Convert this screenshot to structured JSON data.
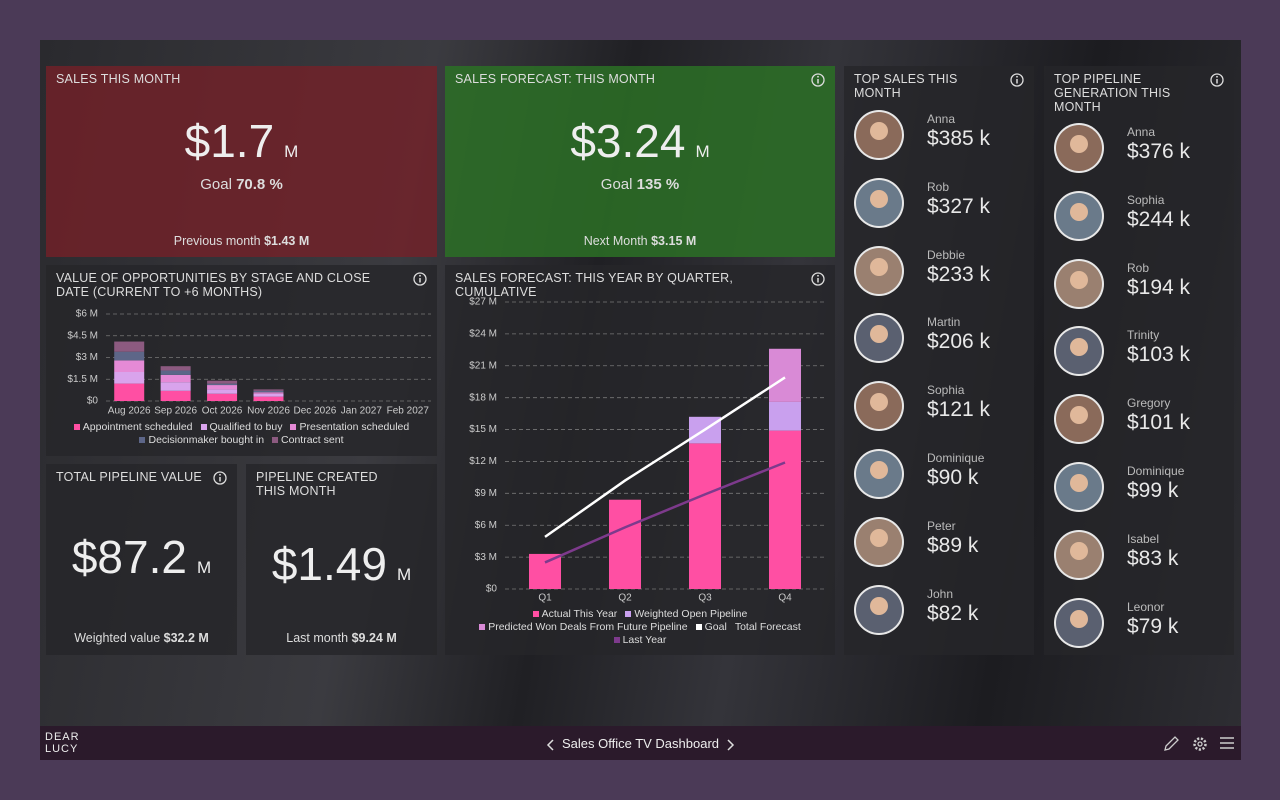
{
  "kpis": [
    {
      "title": "SALES THIS MONTH",
      "value": "$1.7",
      "unit": "M",
      "goal_label": "Goal",
      "goal": "70.8 %",
      "note_label": "Previous month",
      "note": "$1.43 M"
    },
    {
      "title": "SALES FORECAST: THIS MONTH",
      "value": "$3.24",
      "unit": "M",
      "goal_label": "Goal",
      "goal": "135 %",
      "note_label": "Next Month",
      "note": "$3.15 M"
    },
    {
      "title": "TOTAL PIPELINE VALUE",
      "value": "$87.2",
      "unit": "M",
      "note_label": "Weighted value",
      "note": "$32.2 M"
    },
    {
      "title": "PIPELINE CREATED THIS MONTH",
      "value": "$1.49",
      "unit": "M",
      "note_label": "Last month",
      "note": "$9.24 M"
    }
  ],
  "chart_data": [
    {
      "type": "bar",
      "title": "VALUE OF OPPORTUNITIES BY STAGE AND CLOSE DATE (CURRENT TO +6 MONTHS)",
      "categories": [
        "Aug 2026",
        "Sep 2026",
        "Oct 2026",
        "Nov 2026",
        "Dec 2026",
        "Jan 2027",
        "Feb 2027"
      ],
      "series": [
        {
          "name": "Appointment scheduled",
          "color": "#ff4fa3",
          "type": "bar",
          "values": [
            1.2,
            0.7,
            0.5,
            0.3,
            0,
            0,
            0
          ]
        },
        {
          "name": "Qualified to buy",
          "color": "#d9a3ec",
          "type": "bar",
          "values": [
            0.8,
            0.6,
            0.3,
            0.2,
            0,
            0,
            0
          ]
        },
        {
          "name": "Presentation scheduled",
          "color": "#e58ad6",
          "type": "bar",
          "values": [
            0.8,
            0.5,
            0.3,
            0.1,
            0,
            0,
            0
          ]
        },
        {
          "name": "Decisionmaker bought in",
          "color": "#5d6688",
          "type": "bar",
          "values": [
            0.6,
            0.3,
            0.1,
            0.1,
            0,
            0,
            0
          ]
        },
        {
          "name": "Contract sent",
          "color": "#8c5a80",
          "type": "bar",
          "values": [
            0.7,
            0.3,
            0.2,
            0.1,
            0,
            0,
            0
          ]
        }
      ],
      "ylim": [
        0,
        6
      ],
      "yticks": [
        {
          "value": 0,
          "label": "$0"
        },
        {
          "value": 1.5,
          "label": "$1.5 M"
        },
        {
          "value": 3,
          "label": "$3 M"
        },
        {
          "value": 4.5,
          "label": "$4.5 M"
        },
        {
          "value": 6,
          "label": "$6 M"
        }
      ],
      "grid": true
    },
    {
      "type": "bar",
      "title": "SALES FORECAST: THIS YEAR BY QUARTER, CUMULATIVE",
      "categories": [
        "Q1",
        "Q2",
        "Q3",
        "Q4"
      ],
      "series": [
        {
          "name": "Actual This Year",
          "color": "#ff4fa3",
          "type": "bar",
          "values": [
            3.3,
            8.4,
            13.7,
            14.9
          ]
        },
        {
          "name": "Weighted Open Pipeline",
          "color": "#c9a0ee",
          "type": "bar",
          "values": [
            null,
            null,
            2.5,
            2.7
          ]
        },
        {
          "name": "Predicted Won Deals From Future Pipeline",
          "color": "#d98ad6",
          "type": "bar",
          "values": [
            null,
            null,
            null,
            5.0
          ]
        },
        {
          "name": "Goal",
          "color": "#ffffff",
          "type": "line",
          "values": [
            4.9,
            10.2,
            15.0,
            19.9
          ]
        },
        {
          "name": "Total Forecast",
          "color": null,
          "values": [
            null,
            null,
            null,
            null
          ]
        },
        {
          "name": "Last Year",
          "color": "#7d3a8c",
          "type": "line",
          "values": [
            2.5,
            5.8,
            8.9,
            11.9
          ]
        }
      ],
      "ylim": [
        0,
        27
      ],
      "yticks": [
        {
          "value": 0,
          "label": "$0"
        },
        {
          "value": 3,
          "label": "$3 M"
        },
        {
          "value": 6,
          "label": "$6 M"
        },
        {
          "value": 9,
          "label": "$9 M"
        },
        {
          "value": 12,
          "label": "$12 M"
        },
        {
          "value": 15,
          "label": "$15 M"
        },
        {
          "value": 18,
          "label": "$18 M"
        },
        {
          "value": 21,
          "label": "$21 M"
        },
        {
          "value": 24,
          "label": "$24 M"
        },
        {
          "value": 27,
          "label": "$27 M"
        }
      ],
      "grid": true
    }
  ],
  "top_sales": {
    "title": "TOP SALES THIS MONTH",
    "people": [
      {
        "name": "Anna",
        "value": "$385 k"
      },
      {
        "name": "Rob",
        "value": "$327 k"
      },
      {
        "name": "Debbie",
        "value": "$233 k"
      },
      {
        "name": "Martin",
        "value": "$206 k"
      },
      {
        "name": "Sophia",
        "value": "$121 k"
      },
      {
        "name": "Dominique",
        "value": "$90 k"
      },
      {
        "name": "Peter",
        "value": "$89 k"
      },
      {
        "name": "John",
        "value": "$82 k"
      }
    ]
  },
  "top_pipeline": {
    "title": "TOP PIPELINE GENERATION THIS MONTH",
    "people": [
      {
        "name": "Anna",
        "value": "$376 k"
      },
      {
        "name": "Sophia",
        "value": "$244 k"
      },
      {
        "name": "Rob",
        "value": "$194 k"
      },
      {
        "name": "Trinity",
        "value": "$103 k"
      },
      {
        "name": "Gregory",
        "value": "$101 k"
      },
      {
        "name": "Dominique",
        "value": "$99 k"
      },
      {
        "name": "Isabel",
        "value": "$83 k"
      },
      {
        "name": "Leonor",
        "value": "$79 k"
      }
    ]
  },
  "footer": {
    "brand": [
      "DEAR",
      "LUCY"
    ],
    "title": "Sales Office TV Dashboard"
  }
}
